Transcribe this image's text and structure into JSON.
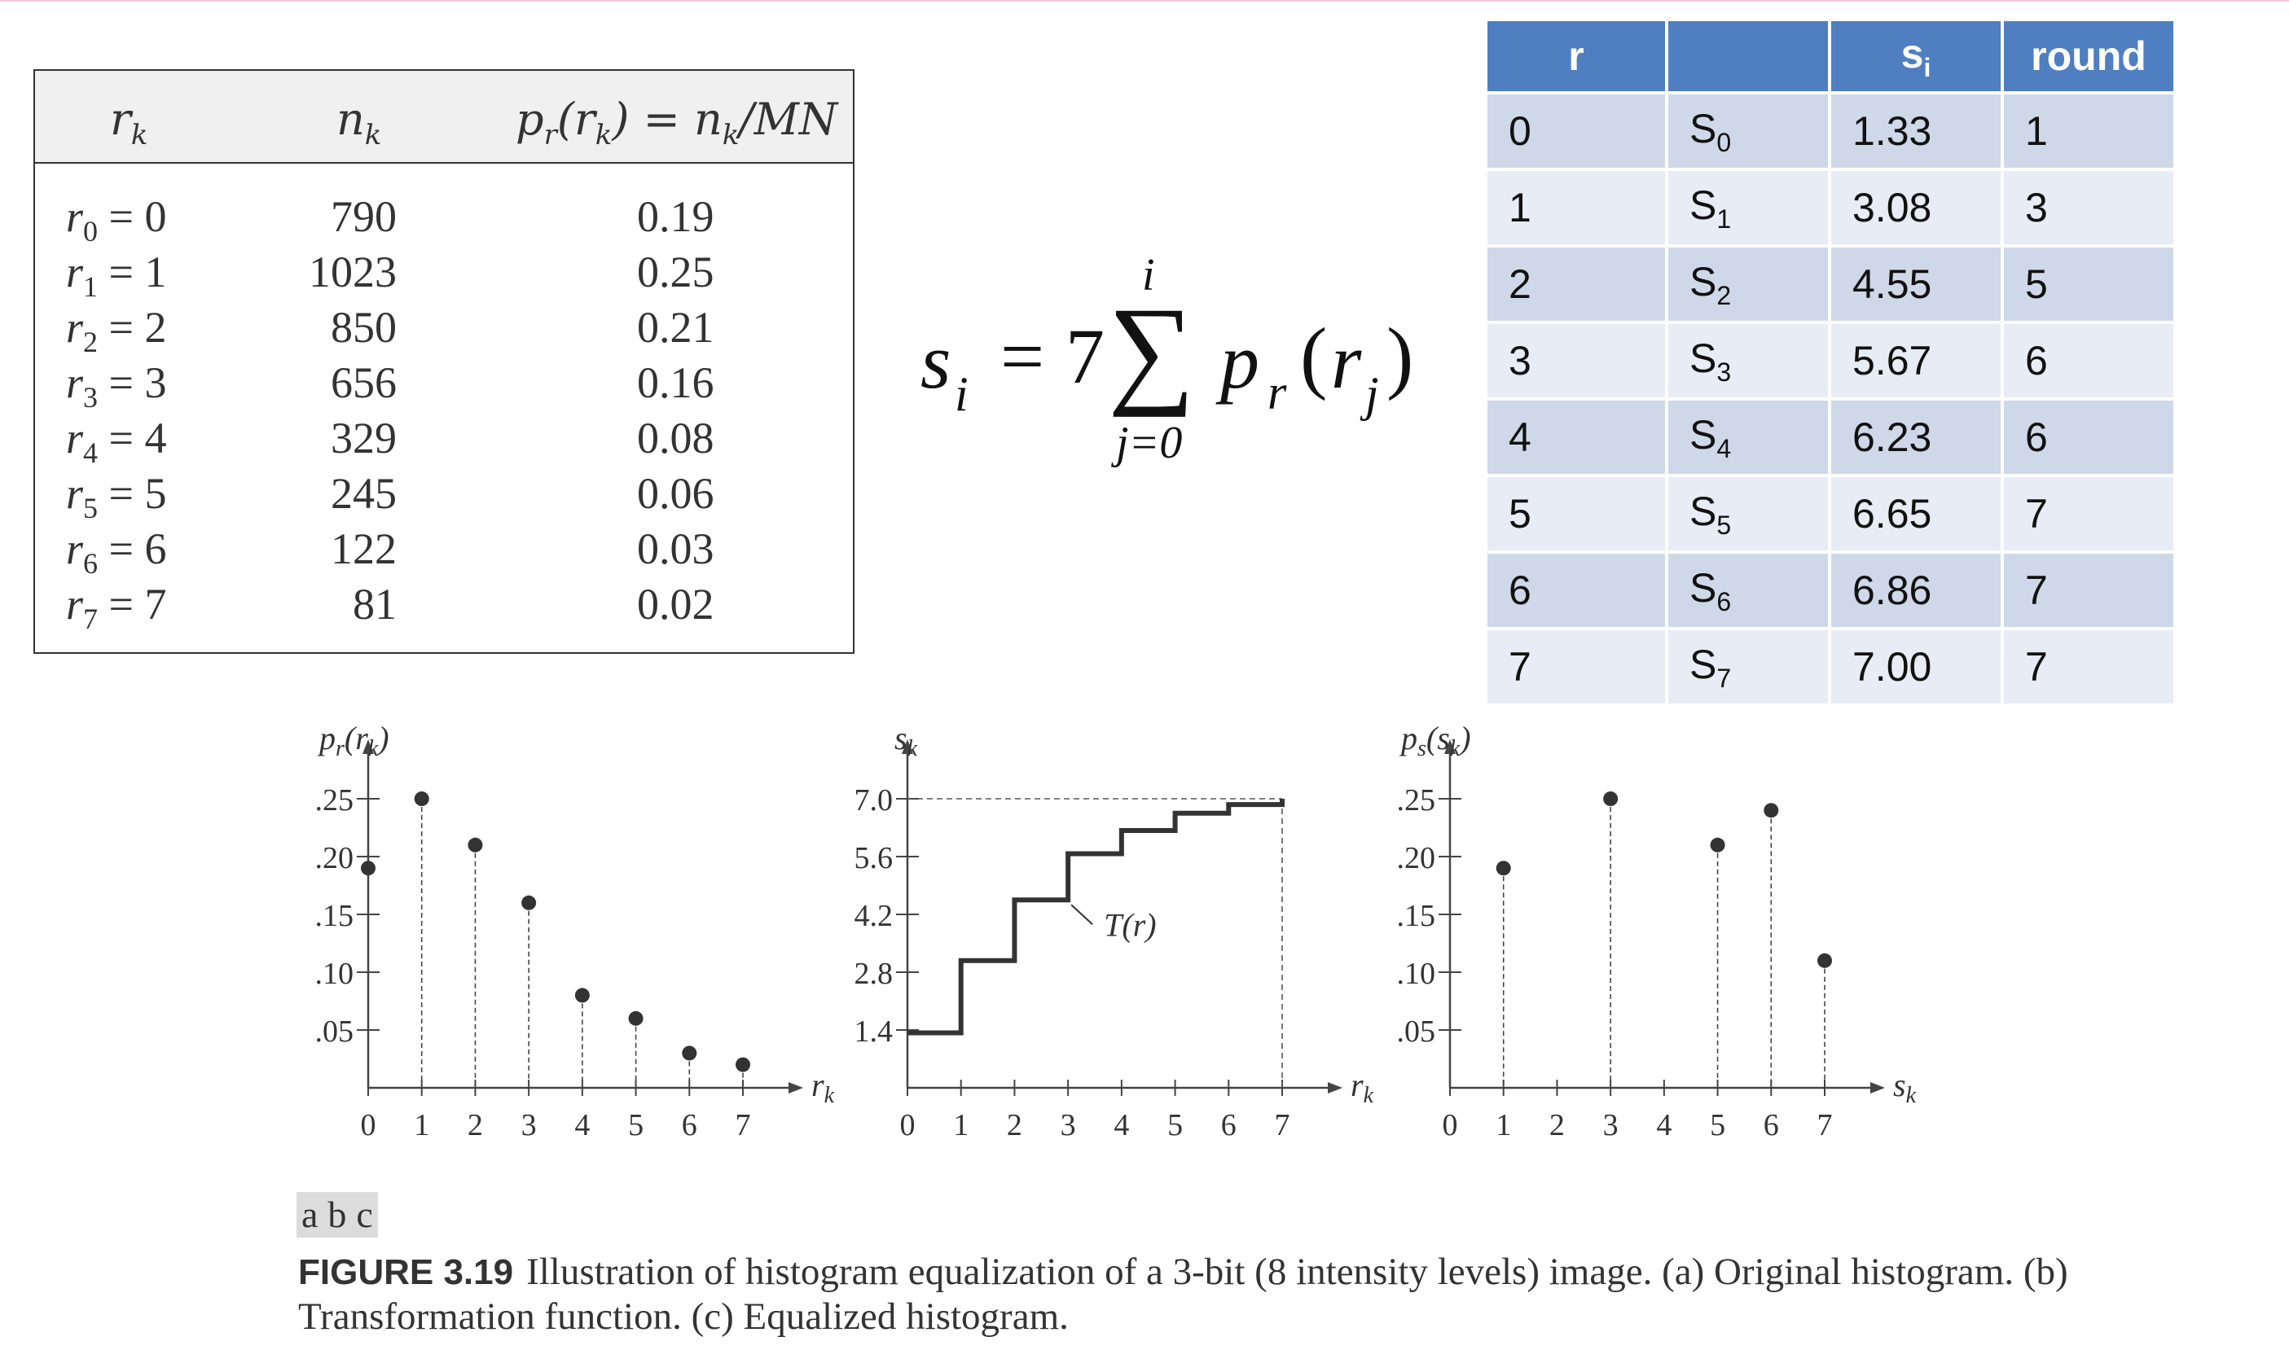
{
  "left_table": {
    "headers": {
      "rk": "r",
      "rk_sub": "k",
      "nk": "n",
      "nk_sub": "k",
      "prob": "p",
      "prob_sub_r": "r",
      "prob_arg": "(r",
      "prob_arg_sub": "k",
      "prob_rest": ") = n",
      "prob_rest_sub": "k",
      "prob_tail": "/MN"
    },
    "rows": [
      {
        "r": "r",
        "sub": "0",
        "eq": " = 0",
        "n": "790",
        "p": "0.19"
      },
      {
        "r": "r",
        "sub": "1",
        "eq": " = 1",
        "n": "1023",
        "p": "0.25"
      },
      {
        "r": "r",
        "sub": "2",
        "eq": " = 2",
        "n": "850",
        "p": "0.21"
      },
      {
        "r": "r",
        "sub": "3",
        "eq": " = 3",
        "n": "656",
        "p": "0.16"
      },
      {
        "r": "r",
        "sub": "4",
        "eq": " = 4",
        "n": "329",
        "p": "0.08"
      },
      {
        "r": "r",
        "sub": "5",
        "eq": " = 5",
        "n": "245",
        "p": "0.06"
      },
      {
        "r": "r",
        "sub": "6",
        "eq": " = 6",
        "n": "122",
        "p": "0.03"
      },
      {
        "r": "r",
        "sub": "7",
        "eq": " = 7",
        "n": "81",
        "p": "0.02"
      }
    ]
  },
  "equation": {
    "lhs": "s",
    "lhs_sub": "i",
    "eq_sign": "=",
    "coef": "7",
    "sigma": "∑",
    "upper": "i",
    "lower": "j=0",
    "func": "p",
    "func_sub": "r",
    "arg_open": "(",
    "arg": "r",
    "arg_sub": "j",
    "arg_close": ")"
  },
  "right_table": {
    "headers": [
      "r",
      "",
      "s",
      "round"
    ],
    "header_s_sub": "i",
    "rows": [
      {
        "r": "0",
        "s": "S",
        "sub": "0",
        "val": "1.33",
        "round": "1"
      },
      {
        "r": "1",
        "s": "S",
        "sub": "1",
        "val": "3.08",
        "round": "3"
      },
      {
        "r": "2",
        "s": "S",
        "sub": "2",
        "val": "4.55",
        "round": "5"
      },
      {
        "r": "3",
        "s": "S",
        "sub": "3",
        "val": "5.67",
        "round": "6"
      },
      {
        "r": "4",
        "s": "S",
        "sub": "4",
        "val": "6.23",
        "round": "6"
      },
      {
        "r": "5",
        "s": "S",
        "sub": "5",
        "val": "6.65",
        "round": "7"
      },
      {
        "r": "6",
        "s": "S",
        "sub": "6",
        "val": "6.86",
        "round": "7"
      },
      {
        "r": "7",
        "s": "S",
        "sub": "7",
        "val": "7.00",
        "round": "7"
      }
    ]
  },
  "chart_data": [
    {
      "type": "scatter",
      "title": "",
      "ylabel": "p",
      "ylabel_sub": "r",
      "ylabel_arg": "(r",
      "ylabel_arg_sub": "k",
      "ylabel_close": ")",
      "xlabel": "r",
      "xlabel_sub": "k",
      "x": [
        0,
        1,
        2,
        3,
        4,
        5,
        6,
        7
      ],
      "y": [
        0.19,
        0.25,
        0.21,
        0.16,
        0.08,
        0.06,
        0.03,
        0.02
      ],
      "xticks": [
        "0",
        "1",
        "2",
        "3",
        "4",
        "5",
        "6",
        "7"
      ],
      "yticks": [
        ".05",
        ".10",
        ".15",
        ".20",
        ".25"
      ],
      "ytick_values": [
        0.05,
        0.1,
        0.15,
        0.2,
        0.25
      ],
      "ylim": [
        0,
        0.3
      ],
      "xlim": [
        0,
        7
      ]
    },
    {
      "type": "line",
      "title": "",
      "ylabel": "s",
      "ylabel_sub": "k",
      "xlabel": "r",
      "xlabel_sub": "k",
      "x": [
        0,
        1,
        2,
        3,
        4,
        5,
        6,
        7
      ],
      "y": [
        1.33,
        3.08,
        4.55,
        5.67,
        6.23,
        6.65,
        6.86,
        7.0
      ],
      "step": true,
      "annotation": "T(r)",
      "xticks": [
        "0",
        "1",
        "2",
        "3",
        "4",
        "5",
        "6",
        "7"
      ],
      "yticks": [
        "1.4",
        "2.8",
        "4.2",
        "5.6",
        "7.0"
      ],
      "ytick_values": [
        1.4,
        2.8,
        4.2,
        5.6,
        7.0
      ],
      "ylim": [
        0,
        8.4
      ],
      "xlim": [
        0,
        7
      ]
    },
    {
      "type": "scatter",
      "title": "",
      "ylabel": "p",
      "ylabel_sub": "s",
      "ylabel_arg": "(s",
      "ylabel_arg_sub": "k",
      "ylabel_close": ")",
      "xlabel": "s",
      "xlabel_sub": "k",
      "x": [
        1,
        3,
        5,
        6,
        7
      ],
      "y": [
        0.19,
        0.25,
        0.21,
        0.24,
        0.11
      ],
      "xticks": [
        "0",
        "1",
        "2",
        "3",
        "4",
        "5",
        "6",
        "7"
      ],
      "yticks": [
        ".05",
        ".10",
        ".15",
        ".20",
        ".25"
      ],
      "ytick_values": [
        0.05,
        0.1,
        0.15,
        0.2,
        0.25
      ],
      "ylim": [
        0,
        0.3
      ],
      "xlim": [
        0,
        7
      ]
    }
  ],
  "caption": {
    "tags": [
      "a",
      "b",
      "c"
    ],
    "label": "FIGURE 3.19",
    "text": "Illustration of histogram equalization of a 3-bit (8 intensity levels) image. (a) Original histogram. (b) Transformation function. (c) Equalized histogram."
  }
}
